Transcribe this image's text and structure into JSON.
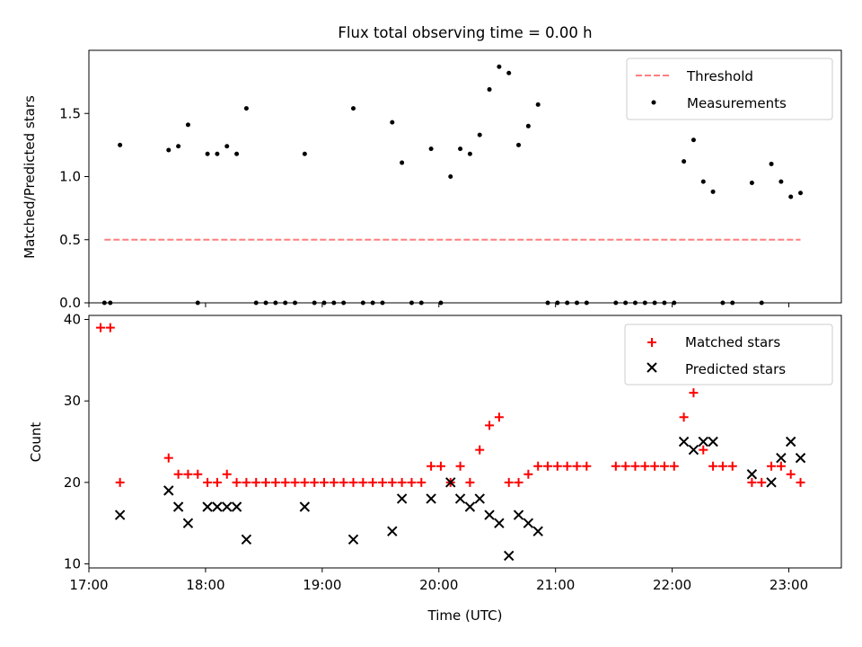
{
  "chart_data": [
    {
      "type": "scatter",
      "title": "Flux total observing time = 0.00 h",
      "xlabel": "",
      "ylabel": "Matched/Predicted stars",
      "xlim": [
        "17:00",
        "23:27"
      ],
      "ylim": [
        0,
        2.0
      ],
      "xticks": [
        "17:00",
        "18:00",
        "19:00",
        "20:00",
        "21:00",
        "22:00",
        "23:00"
      ],
      "yticks": [
        "0.0",
        "0.5",
        "1.0",
        "1.5"
      ],
      "legend_position": "top-right",
      "series": [
        {
          "name": "Threshold",
          "kind": "dashed-line",
          "color": "#ff7f7f",
          "x": [
            "17:08",
            "23:06"
          ],
          "y": [
            0.5,
            0.5
          ]
        },
        {
          "name": "Measurements",
          "kind": "dots",
          "color": "#000000",
          "points": [
            [
              "17:08",
              0.0
            ],
            [
              "17:11",
              0.0
            ],
            [
              "17:16",
              1.25
            ],
            [
              "17:41",
              1.21
            ],
            [
              "17:46",
              1.24
            ],
            [
              "17:51",
              1.41
            ],
            [
              "17:56",
              0.0
            ],
            [
              "18:01",
              1.18
            ],
            [
              "18:06",
              1.18
            ],
            [
              "18:11",
              1.24
            ],
            [
              "18:16",
              1.18
            ],
            [
              "18:21",
              1.54
            ],
            [
              "18:26",
              0.0
            ],
            [
              "18:31",
              0.0
            ],
            [
              "18:36",
              0.0
            ],
            [
              "18:41",
              0.0
            ],
            [
              "18:46",
              0.0
            ],
            [
              "18:51",
              1.18
            ],
            [
              "18:56",
              0.0
            ],
            [
              "19:01",
              0.0
            ],
            [
              "19:06",
              0.0
            ],
            [
              "19:11",
              0.0
            ],
            [
              "19:16",
              1.54
            ],
            [
              "19:21",
              0.0
            ],
            [
              "19:26",
              0.0
            ],
            [
              "19:31",
              0.0
            ],
            [
              "19:36",
              1.43
            ],
            [
              "19:41",
              1.11
            ],
            [
              "19:46",
              0.0
            ],
            [
              "19:51",
              0.0
            ],
            [
              "19:56",
              1.22
            ],
            [
              "20:01",
              0.0
            ],
            [
              "20:06",
              1.0
            ],
            [
              "20:11",
              1.22
            ],
            [
              "20:16",
              1.18
            ],
            [
              "20:21",
              1.33
            ],
            [
              "20:26",
              1.69
            ],
            [
              "20:31",
              1.87
            ],
            [
              "20:36",
              1.82
            ],
            [
              "20:41",
              1.25
            ],
            [
              "20:46",
              1.4
            ],
            [
              "20:51",
              1.57
            ],
            [
              "20:56",
              0.0
            ],
            [
              "21:01",
              0.0
            ],
            [
              "21:06",
              0.0
            ],
            [
              "21:11",
              0.0
            ],
            [
              "21:16",
              0.0
            ],
            [
              "21:31",
              0.0
            ],
            [
              "21:36",
              0.0
            ],
            [
              "21:41",
              0.0
            ],
            [
              "21:46",
              0.0
            ],
            [
              "21:51",
              0.0
            ],
            [
              "21:56",
              0.0
            ],
            [
              "22:01",
              0.0
            ],
            [
              "22:06",
              1.12
            ],
            [
              "22:11",
              1.29
            ],
            [
              "22:16",
              0.96
            ],
            [
              "22:21",
              0.88
            ],
            [
              "22:26",
              0.0
            ],
            [
              "22:31",
              0.0
            ],
            [
              "22:41",
              0.95
            ],
            [
              "22:46",
              0.0
            ],
            [
              "22:51",
              1.1
            ],
            [
              "22:56",
              0.96
            ],
            [
              "23:01",
              0.84
            ],
            [
              "23:06",
              0.87
            ]
          ]
        }
      ]
    },
    {
      "type": "scatter",
      "title": "",
      "xlabel": "Time (UTC)",
      "ylabel": "Count",
      "xlim": [
        "17:00",
        "23:27"
      ],
      "ylim": [
        9.5,
        40.5
      ],
      "xticks": [
        "17:00",
        "18:00",
        "19:00",
        "20:00",
        "21:00",
        "22:00",
        "23:00"
      ],
      "yticks": [
        "10",
        "20",
        "30",
        "40"
      ],
      "legend_position": "top-right",
      "series": [
        {
          "name": "Matched stars",
          "marker": "plus",
          "color": "#ff0000",
          "points": [
            [
              "17:06",
              39
            ],
            [
              "17:11",
              39
            ],
            [
              "17:16",
              20
            ],
            [
              "17:41",
              23
            ],
            [
              "17:46",
              21
            ],
            [
              "17:51",
              21
            ],
            [
              "17:56",
              21
            ],
            [
              "18:01",
              20
            ],
            [
              "18:06",
              20
            ],
            [
              "18:11",
              21
            ],
            [
              "18:16",
              20
            ],
            [
              "18:21",
              20
            ],
            [
              "18:26",
              20
            ],
            [
              "18:31",
              20
            ],
            [
              "18:36",
              20
            ],
            [
              "18:41",
              20
            ],
            [
              "18:46",
              20
            ],
            [
              "18:51",
              20
            ],
            [
              "18:56",
              20
            ],
            [
              "19:01",
              20
            ],
            [
              "19:06",
              20
            ],
            [
              "19:11",
              20
            ],
            [
              "19:16",
              20
            ],
            [
              "19:21",
              20
            ],
            [
              "19:26",
              20
            ],
            [
              "19:31",
              20
            ],
            [
              "19:36",
              20
            ],
            [
              "19:41",
              20
            ],
            [
              "19:46",
              20
            ],
            [
              "19:51",
              20
            ],
            [
              "19:56",
              22
            ],
            [
              "20:01",
              22
            ],
            [
              "20:06",
              20
            ],
            [
              "20:11",
              22
            ],
            [
              "20:16",
              20
            ],
            [
              "20:21",
              24
            ],
            [
              "20:26",
              27
            ],
            [
              "20:31",
              28
            ],
            [
              "20:36",
              20
            ],
            [
              "20:41",
              20
            ],
            [
              "20:46",
              21
            ],
            [
              "20:51",
              22
            ],
            [
              "20:56",
              22
            ],
            [
              "21:01",
              22
            ],
            [
              "21:06",
              22
            ],
            [
              "21:11",
              22
            ],
            [
              "21:16",
              22
            ],
            [
              "21:31",
              22
            ],
            [
              "21:36",
              22
            ],
            [
              "21:41",
              22
            ],
            [
              "21:46",
              22
            ],
            [
              "21:51",
              22
            ],
            [
              "21:56",
              22
            ],
            [
              "22:01",
              22
            ],
            [
              "22:06",
              28
            ],
            [
              "22:11",
              31
            ],
            [
              "22:16",
              24
            ],
            [
              "22:21",
              22
            ],
            [
              "22:26",
              22
            ],
            [
              "22:31",
              22
            ],
            [
              "22:41",
              20
            ],
            [
              "22:46",
              20
            ],
            [
              "22:51",
              22
            ],
            [
              "22:56",
              22
            ],
            [
              "23:01",
              21
            ],
            [
              "23:06",
              20
            ]
          ]
        },
        {
          "name": "Predicted stars",
          "marker": "x",
          "color": "#000000",
          "points": [
            [
              "17:16",
              16
            ],
            [
              "17:41",
              19
            ],
            [
              "17:46",
              17
            ],
            [
              "17:51",
              15
            ],
            [
              "18:01",
              17
            ],
            [
              "18:06",
              17
            ],
            [
              "18:11",
              17
            ],
            [
              "18:16",
              17
            ],
            [
              "18:21",
              13
            ],
            [
              "18:51",
              17
            ],
            [
              "19:16",
              13
            ],
            [
              "19:36",
              14
            ],
            [
              "19:41",
              18
            ],
            [
              "19:56",
              18
            ],
            [
              "20:06",
              20
            ],
            [
              "20:11",
              18
            ],
            [
              "20:16",
              17
            ],
            [
              "20:21",
              18
            ],
            [
              "20:26",
              16
            ],
            [
              "20:31",
              15
            ],
            [
              "20:36",
              11
            ],
            [
              "20:41",
              16
            ],
            [
              "20:46",
              15
            ],
            [
              "20:51",
              14
            ],
            [
              "22:06",
              25
            ],
            [
              "22:11",
              24
            ],
            [
              "22:16",
              25
            ],
            [
              "22:21",
              25
            ],
            [
              "22:41",
              21
            ],
            [
              "22:51",
              20
            ],
            [
              "22:56",
              23
            ],
            [
              "23:01",
              25
            ],
            [
              "23:06",
              23
            ]
          ]
        }
      ]
    }
  ]
}
